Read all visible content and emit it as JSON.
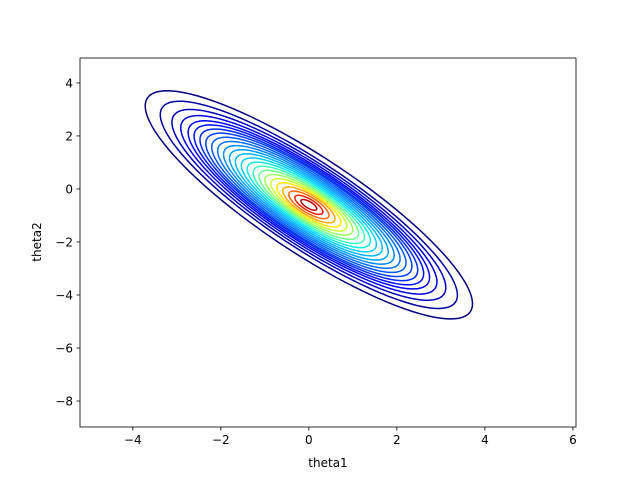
{
  "chart_data": {
    "type": "contour",
    "xlabel": "theta1",
    "ylabel": "theta2",
    "xlim": [
      -5.2,
      6.07
    ],
    "ylim": [
      -8.98,
      4.94
    ],
    "xticks": [
      {
        "value": -4,
        "label": "−4"
      },
      {
        "value": -2,
        "label": "−2"
      },
      0,
      2,
      4,
      6
    ],
    "yticks": [
      {
        "value": -8,
        "label": "−8"
      },
      {
        "value": -6,
        "label": "−6"
      },
      {
        "value": -4,
        "label": "−4"
      },
      {
        "value": -2,
        "label": "−2"
      },
      0,
      2,
      4
    ],
    "center": [
      0,
      -0.6
    ],
    "angle": -49.8,
    "contours": [
      {
        "rx": 5.5,
        "ry": 1.45,
        "color": "#00007f"
      },
      {
        "rx": 5.0,
        "ry": 1.3,
        "color": "#00009f"
      },
      {
        "rx": 4.6,
        "ry": 1.22,
        "color": "#0000bf"
      },
      {
        "rx": 4.3,
        "ry": 1.15,
        "color": "#0000df"
      },
      {
        "rx": 4.05,
        "ry": 1.09,
        "color": "#0000ff"
      },
      {
        "rx": 3.85,
        "ry": 1.04,
        "color": "#0010ff"
      },
      {
        "rx": 3.65,
        "ry": 0.99,
        "color": "#0028ff"
      },
      {
        "rx": 3.45,
        "ry": 0.95,
        "color": "#0040ff"
      },
      {
        "rx": 3.25,
        "ry": 0.9,
        "color": "#0058ff"
      },
      {
        "rx": 3.05,
        "ry": 0.85,
        "color": "#0070ff"
      },
      {
        "rx": 2.85,
        "ry": 0.8,
        "color": "#0088ff"
      },
      {
        "rx": 2.65,
        "ry": 0.75,
        "color": "#00a0ff"
      },
      {
        "rx": 2.45,
        "ry": 0.7,
        "color": "#00b8ff"
      },
      {
        "rx": 2.25,
        "ry": 0.65,
        "color": "#00d0ff"
      },
      {
        "rx": 2.05,
        "ry": 0.6,
        "color": "#10e8e6"
      },
      {
        "rx": 1.85,
        "ry": 0.55,
        "color": "#3affbd"
      },
      {
        "rx": 1.65,
        "ry": 0.5,
        "color": "#6aff8d"
      },
      {
        "rx": 1.45,
        "ry": 0.45,
        "color": "#9aff5c"
      },
      {
        "rx": 1.25,
        "ry": 0.4,
        "color": "#caff2c"
      },
      {
        "rx": 1.05,
        "ry": 0.35,
        "color": "#ffe500"
      },
      {
        "rx": 0.85,
        "ry": 0.3,
        "color": "#ffa800"
      },
      {
        "rx": 0.65,
        "ry": 0.24,
        "color": "#ff6a00"
      },
      {
        "rx": 0.45,
        "ry": 0.17,
        "color": "#f31d00"
      },
      {
        "rx": 0.25,
        "ry": 0.1,
        "color": "#b20000"
      }
    ]
  }
}
